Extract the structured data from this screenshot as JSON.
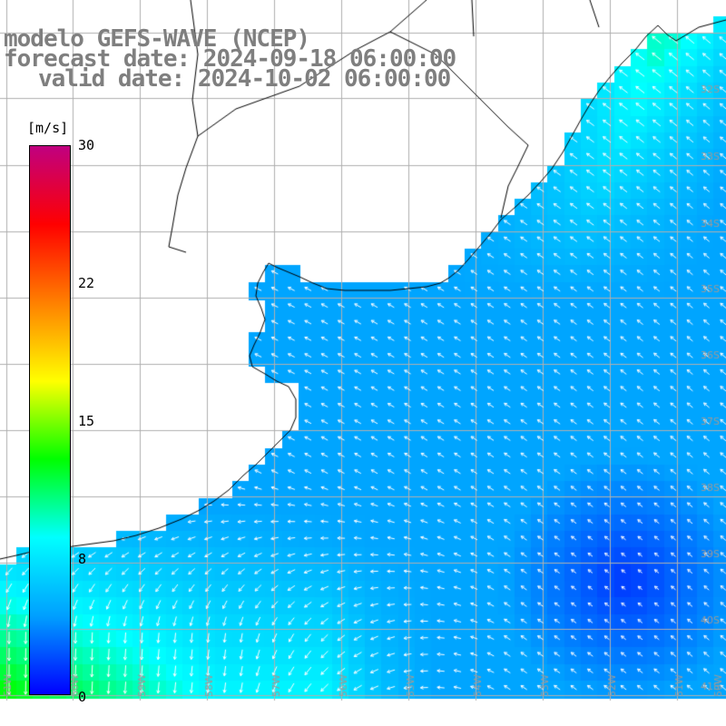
{
  "title": {
    "line1": "modelo GEFS-WAVE (NCEP)",
    "line2": "forecast date: 2024-09-18 06:00:00",
    "line3": "valid date: 2024-10-02 06:00:00"
  },
  "colorbar": {
    "unit": "[m/s]",
    "min": 0,
    "max": 30,
    "ticks": [
      "30",
      "22",
      "15",
      "8",
      "0"
    ],
    "tick_values": [
      30,
      22,
      15,
      8,
      0
    ],
    "colors": [
      "#0000ff",
      "#00a0ff",
      "#00ffff",
      "#00ff00",
      "#ffff00",
      "#ff8000",
      "#ff0000",
      "#c00080"
    ]
  },
  "lat_labels": [
    "32S",
    "33S",
    "34S",
    "35S",
    "36S",
    "37S",
    "38S",
    "39S",
    "40S",
    "41S"
  ],
  "lon_labels": [
    "61W",
    "60W",
    "59W",
    "58W",
    "57W",
    "56W",
    "55W",
    "54W",
    "53W",
    "52W",
    "51W",
    "50W"
  ],
  "colors": {
    "background": "#ffffff",
    "land": "#ffffff",
    "coast": "#000000",
    "grid": "#b0b0b0",
    "arrow": "#ffffff",
    "title": "#7f7f7f"
  }
}
